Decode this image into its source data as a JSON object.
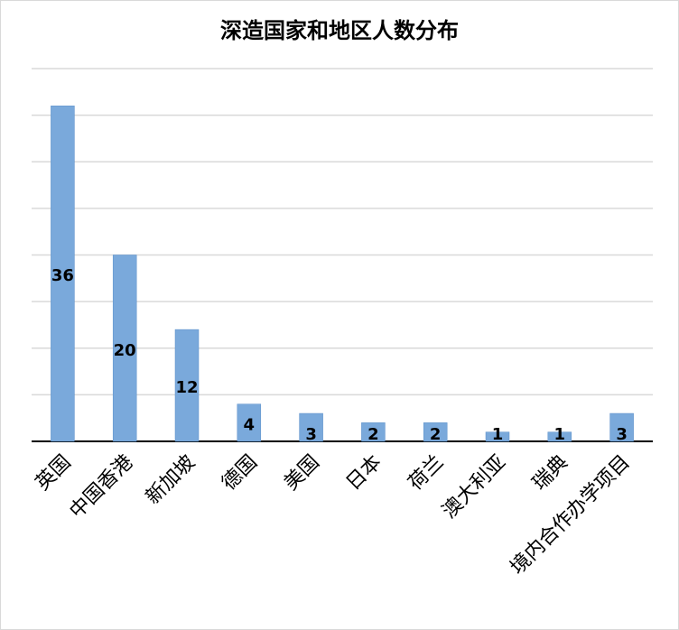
{
  "chart_data": {
    "type": "bar",
    "title": "深造国家和地区人数分布",
    "categories": [
      "英国",
      "中国香港",
      "新加坡",
      "德国",
      "美国",
      "日本",
      "荷兰",
      "澳大利亚",
      "瑞典",
      "境内合作办学项目"
    ],
    "values": [
      36,
      20,
      12,
      4,
      3,
      2,
      2,
      1,
      1,
      3
    ],
    "ylim": [
      0,
      40
    ],
    "grid": true,
    "legend": "none",
    "colors": {
      "bar": "#7aa9db",
      "bar_edge": "#5b8fc9",
      "grid": "#d9d9d9",
      "axis": "#000000"
    }
  }
}
